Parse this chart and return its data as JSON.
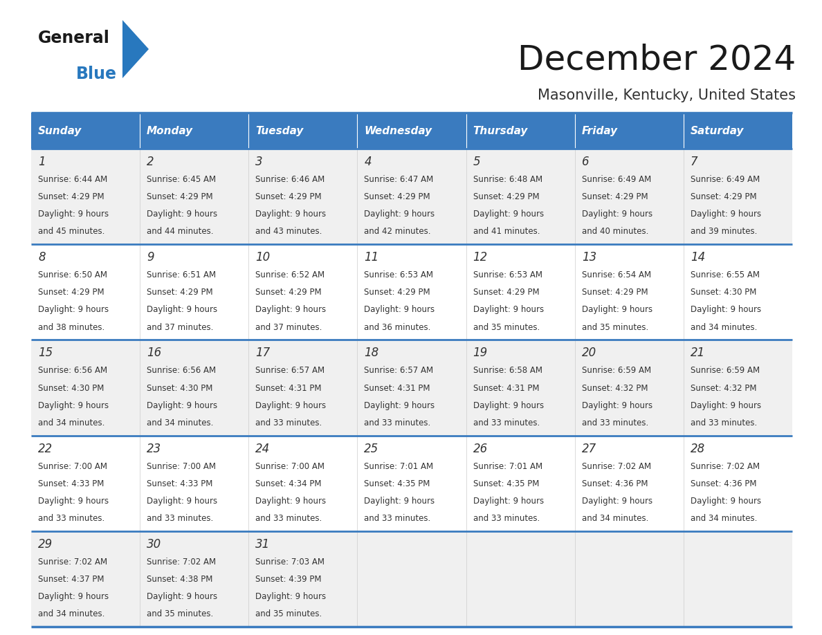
{
  "title": "December 2024",
  "subtitle": "Masonville, Kentucky, United States",
  "days_of_week": [
    "Sunday",
    "Monday",
    "Tuesday",
    "Wednesday",
    "Thursday",
    "Friday",
    "Saturday"
  ],
  "header_bg": "#3a7bbf",
  "header_text_color": "#ffffff",
  "cell_bg_week1": "#f0f0f0",
  "cell_bg_week2": "#ffffff",
  "divider_color": "#3a7bbf",
  "text_color": "#333333",
  "title_color": "#1a1a1a",
  "subtitle_color": "#333333",
  "logo_general_color": "#1a1a1a",
  "logo_blue_color": "#2878be",
  "weeks": [
    [
      {
        "day": 1,
        "sunrise": "6:44 AM",
        "sunset": "4:29 PM",
        "daylight": "9 hours",
        "daylight2": "and 45 minutes."
      },
      {
        "day": 2,
        "sunrise": "6:45 AM",
        "sunset": "4:29 PM",
        "daylight": "9 hours",
        "daylight2": "and 44 minutes."
      },
      {
        "day": 3,
        "sunrise": "6:46 AM",
        "sunset": "4:29 PM",
        "daylight": "9 hours",
        "daylight2": "and 43 minutes."
      },
      {
        "day": 4,
        "sunrise": "6:47 AM",
        "sunset": "4:29 PM",
        "daylight": "9 hours",
        "daylight2": "and 42 minutes."
      },
      {
        "day": 5,
        "sunrise": "6:48 AM",
        "sunset": "4:29 PM",
        "daylight": "9 hours",
        "daylight2": "and 41 minutes."
      },
      {
        "day": 6,
        "sunrise": "6:49 AM",
        "sunset": "4:29 PM",
        "daylight": "9 hours",
        "daylight2": "and 40 minutes."
      },
      {
        "day": 7,
        "sunrise": "6:49 AM",
        "sunset": "4:29 PM",
        "daylight": "9 hours",
        "daylight2": "and 39 minutes."
      }
    ],
    [
      {
        "day": 8,
        "sunrise": "6:50 AM",
        "sunset": "4:29 PM",
        "daylight": "9 hours",
        "daylight2": "and 38 minutes."
      },
      {
        "day": 9,
        "sunrise": "6:51 AM",
        "sunset": "4:29 PM",
        "daylight": "9 hours",
        "daylight2": "and 37 minutes."
      },
      {
        "day": 10,
        "sunrise": "6:52 AM",
        "sunset": "4:29 PM",
        "daylight": "9 hours",
        "daylight2": "and 37 minutes."
      },
      {
        "day": 11,
        "sunrise": "6:53 AM",
        "sunset": "4:29 PM",
        "daylight": "9 hours",
        "daylight2": "and 36 minutes."
      },
      {
        "day": 12,
        "sunrise": "6:53 AM",
        "sunset": "4:29 PM",
        "daylight": "9 hours",
        "daylight2": "and 35 minutes."
      },
      {
        "day": 13,
        "sunrise": "6:54 AM",
        "sunset": "4:29 PM",
        "daylight": "9 hours",
        "daylight2": "and 35 minutes."
      },
      {
        "day": 14,
        "sunrise": "6:55 AM",
        "sunset": "4:30 PM",
        "daylight": "9 hours",
        "daylight2": "and 34 minutes."
      }
    ],
    [
      {
        "day": 15,
        "sunrise": "6:56 AM",
        "sunset": "4:30 PM",
        "daylight": "9 hours",
        "daylight2": "and 34 minutes."
      },
      {
        "day": 16,
        "sunrise": "6:56 AM",
        "sunset": "4:30 PM",
        "daylight": "9 hours",
        "daylight2": "and 34 minutes."
      },
      {
        "day": 17,
        "sunrise": "6:57 AM",
        "sunset": "4:31 PM",
        "daylight": "9 hours",
        "daylight2": "and 33 minutes."
      },
      {
        "day": 18,
        "sunrise": "6:57 AM",
        "sunset": "4:31 PM",
        "daylight": "9 hours",
        "daylight2": "and 33 minutes."
      },
      {
        "day": 19,
        "sunrise": "6:58 AM",
        "sunset": "4:31 PM",
        "daylight": "9 hours",
        "daylight2": "and 33 minutes."
      },
      {
        "day": 20,
        "sunrise": "6:59 AM",
        "sunset": "4:32 PM",
        "daylight": "9 hours",
        "daylight2": "and 33 minutes."
      },
      {
        "day": 21,
        "sunrise": "6:59 AM",
        "sunset": "4:32 PM",
        "daylight": "9 hours",
        "daylight2": "and 33 minutes."
      }
    ],
    [
      {
        "day": 22,
        "sunrise": "7:00 AM",
        "sunset": "4:33 PM",
        "daylight": "9 hours",
        "daylight2": "and 33 minutes."
      },
      {
        "day": 23,
        "sunrise": "7:00 AM",
        "sunset": "4:33 PM",
        "daylight": "9 hours",
        "daylight2": "and 33 minutes."
      },
      {
        "day": 24,
        "sunrise": "7:00 AM",
        "sunset": "4:34 PM",
        "daylight": "9 hours",
        "daylight2": "and 33 minutes."
      },
      {
        "day": 25,
        "sunrise": "7:01 AM",
        "sunset": "4:35 PM",
        "daylight": "9 hours",
        "daylight2": "and 33 minutes."
      },
      {
        "day": 26,
        "sunrise": "7:01 AM",
        "sunset": "4:35 PM",
        "daylight": "9 hours",
        "daylight2": "and 33 minutes."
      },
      {
        "day": 27,
        "sunrise": "7:02 AM",
        "sunset": "4:36 PM",
        "daylight": "9 hours",
        "daylight2": "and 34 minutes."
      },
      {
        "day": 28,
        "sunrise": "7:02 AM",
        "sunset": "4:36 PM",
        "daylight": "9 hours",
        "daylight2": "and 34 minutes."
      }
    ],
    [
      {
        "day": 29,
        "sunrise": "7:02 AM",
        "sunset": "4:37 PM",
        "daylight": "9 hours",
        "daylight2": "and 34 minutes."
      },
      {
        "day": 30,
        "sunrise": "7:02 AM",
        "sunset": "4:38 PM",
        "daylight": "9 hours",
        "daylight2": "and 35 minutes."
      },
      {
        "day": 31,
        "sunrise": "7:03 AM",
        "sunset": "4:39 PM",
        "daylight": "9 hours",
        "daylight2": "and 35 minutes."
      },
      null,
      null,
      null,
      null
    ]
  ]
}
